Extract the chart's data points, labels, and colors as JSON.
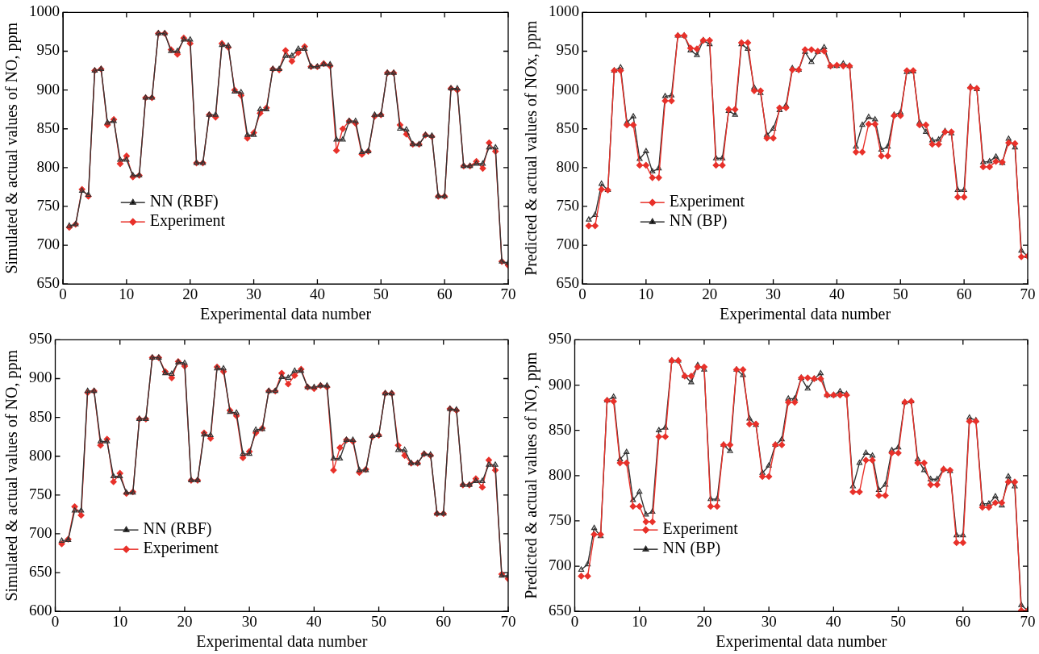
{
  "chart_data": [
    {
      "type": "line",
      "xlabel": "Experimental data number",
      "ylabel": "Simulated & actual values of NO, ppm",
      "x": [
        1,
        2,
        3,
        4,
        5,
        6,
        7,
        8,
        9,
        10,
        11,
        12,
        13,
        14,
        15,
        16,
        17,
        18,
        19,
        20,
        21,
        22,
        23,
        24,
        25,
        26,
        27,
        28,
        29,
        30,
        31,
        32,
        33,
        34,
        35,
        36,
        37,
        38,
        39,
        40,
        41,
        42,
        43,
        44,
        45,
        46,
        47,
        48,
        49,
        50,
        51,
        52,
        53,
        54,
        55,
        56,
        57,
        58,
        59,
        60,
        61,
        62,
        63,
        64,
        65,
        66,
        67,
        68,
        69,
        70
      ],
      "xlim": [
        0,
        70
      ],
      "xticks": [
        0,
        10,
        20,
        30,
        40,
        50,
        60,
        70
      ],
      "ylim": [
        650,
        1000
      ],
      "yticks": [
        650,
        700,
        750,
        800,
        850,
        900,
        950,
        1000
      ],
      "grid": false,
      "legend": "bottom left",
      "line_style": "solid",
      "series": [
        {
          "name": "NN (RBF)",
          "color": "#333333",
          "marker": "triangle",
          "values": [
            725,
            727,
            770,
            765,
            925,
            927,
            858,
            860,
            810,
            810,
            790,
            790,
            890,
            890,
            973,
            973,
            950,
            950,
            965,
            965,
            806,
            806,
            868,
            868,
            958,
            957,
            898,
            897,
            842,
            842,
            875,
            875,
            927,
            927,
            944,
            944,
            953,
            953,
            930,
            930,
            933,
            933,
            836,
            836,
            860,
            860,
            820,
            821,
            868,
            868,
            922,
            922,
            850,
            849,
            830,
            830,
            842,
            841,
            763,
            763,
            902,
            902,
            802,
            802,
            805,
            805,
            826,
            826,
            679,
            677
          ]
        },
        {
          "name": "Experiment",
          "color": "#e8312a",
          "marker": "diamond",
          "values": [
            723,
            727,
            772,
            763,
            925,
            927,
            855,
            862,
            805,
            815,
            788,
            790,
            890,
            890,
            973,
            973,
            952,
            946,
            967,
            960,
            806,
            806,
            868,
            865,
            960,
            955,
            900,
            893,
            838,
            845,
            870,
            877,
            927,
            926,
            951,
            937,
            948,
            956,
            930,
            930,
            934,
            931,
            822,
            850,
            860,
            857,
            817,
            821,
            866,
            868,
            922,
            922,
            855,
            843,
            830,
            830,
            842,
            840,
            763,
            763,
            902,
            900,
            802,
            802,
            808,
            799,
            832,
            821,
            679,
            674
          ]
        }
      ]
    },
    {
      "type": "line",
      "xlabel": "Experimental data number",
      "ylabel": "Predicted & actual values of NOx, ppm",
      "x": [
        1,
        2,
        3,
        4,
        5,
        6,
        7,
        8,
        9,
        10,
        11,
        12,
        13,
        14,
        15,
        16,
        17,
        18,
        19,
        20,
        21,
        22,
        23,
        24,
        25,
        26,
        27,
        28,
        29,
        30,
        31,
        32,
        33,
        34,
        35,
        36,
        37,
        38,
        39,
        40,
        41,
        42,
        43,
        44,
        45,
        46,
        47,
        48,
        49,
        50,
        51,
        52,
        53,
        54,
        55,
        56,
        57,
        58,
        59,
        60,
        61,
        62,
        63,
        64,
        65,
        66,
        67,
        68,
        69,
        70
      ],
      "xlim": [
        0,
        70
      ],
      "xticks": [
        0,
        10,
        20,
        30,
        40,
        50,
        60,
        70
      ],
      "ylim": [
        650,
        1000
      ],
      "yticks": [
        650,
        700,
        750,
        800,
        850,
        900,
        950,
        1000
      ],
      "grid": false,
      "legend": "bottom left",
      "line_style": "solid",
      "series": [
        {
          "name": "Experiment",
          "color": "#e8312a",
          "marker": "diamond",
          "values": [
            725,
            725,
            772,
            771,
            925,
            925,
            855,
            855,
            803,
            803,
            787,
            787,
            886,
            886,
            970,
            970,
            954,
            953,
            964,
            964,
            803,
            803,
            875,
            875,
            961,
            961,
            899,
            899,
            838,
            838,
            877,
            877,
            926,
            926,
            952,
            952,
            950,
            950,
            931,
            932,
            931,
            931,
            820,
            820,
            856,
            856,
            815,
            815,
            867,
            867,
            925,
            925,
            855,
            855,
            830,
            830,
            846,
            846,
            762,
            762,
            903,
            902,
            801,
            801,
            808,
            807,
            832,
            831,
            685,
            686
          ]
        },
        {
          "name": "NN (BP)",
          "color": "#333333",
          "marker": "triangle",
          "values": [
            733,
            739,
            779,
            771,
            925,
            929,
            858,
            866,
            811,
            821,
            795,
            799,
            892,
            893,
            970,
            970,
            951,
            945,
            964,
            959,
            812,
            812,
            873,
            868,
            959,
            953,
            903,
            896,
            842,
            850,
            874,
            880,
            928,
            926,
            949,
            936,
            949,
            955,
            931,
            931,
            934,
            931,
            827,
            855,
            865,
            862,
            823,
            827,
            868,
            871,
            923,
            924,
            858,
            846,
            835,
            836,
            847,
            844,
            771,
            771,
            904,
            901,
            807,
            808,
            814,
            806,
            837,
            826,
            693,
            686
          ]
        }
      ]
    },
    {
      "type": "line",
      "xlabel": "Experimental data number",
      "ylabel": "Simulated & actual values of NO, ppm",
      "x": [
        1,
        2,
        3,
        4,
        5,
        6,
        7,
        8,
        9,
        10,
        11,
        12,
        13,
        14,
        15,
        16,
        17,
        18,
        19,
        20,
        21,
        22,
        23,
        24,
        25,
        26,
        27,
        28,
        29,
        30,
        31,
        32,
        33,
        34,
        35,
        36,
        37,
        38,
        39,
        40,
        41,
        42,
        43,
        44,
        45,
        46,
        47,
        48,
        49,
        50,
        51,
        52,
        53,
        54,
        55,
        56,
        57,
        58,
        59,
        60,
        61,
        62,
        63,
        64,
        65,
        66,
        67,
        68,
        69,
        70
      ],
      "xlim": [
        0,
        70
      ],
      "xticks": [
        0,
        10,
        20,
        30,
        40,
        50,
        60,
        70
      ],
      "ylim": [
        600,
        950
      ],
      "yticks": [
        600,
        650,
        700,
        750,
        800,
        850,
        900,
        950
      ],
      "grid": false,
      "legend": "bottom left",
      "line_style": "solid",
      "series": [
        {
          "name": "NN (RBF)",
          "color": "#333333",
          "marker": "triangle",
          "values": [
            691,
            692,
            730,
            730,
            884,
            884,
            819,
            819,
            774,
            774,
            753,
            753,
            848,
            848,
            927,
            927,
            907,
            906,
            921,
            920,
            769,
            769,
            828,
            827,
            913,
            913,
            857,
            856,
            803,
            803,
            834,
            835,
            884,
            884,
            902,
            901,
            910,
            910,
            889,
            889,
            891,
            891,
            797,
            797,
            821,
            821,
            782,
            782,
            826,
            827,
            881,
            881,
            808,
            808,
            791,
            791,
            803,
            802,
            726,
            726,
            861,
            860,
            763,
            763,
            768,
            768,
            789,
            789,
            646,
            646
          ]
        },
        {
          "name": "Experiment",
          "color": "#e8312a",
          "marker": "diamond",
          "values": [
            687,
            693,
            735,
            724,
            882,
            884,
            814,
            822,
            767,
            778,
            752,
            754,
            848,
            848,
            927,
            927,
            909,
            901,
            922,
            916,
            769,
            769,
            830,
            823,
            915,
            909,
            859,
            852,
            798,
            806,
            830,
            836,
            884,
            884,
            907,
            893,
            904,
            912,
            889,
            887,
            891,
            889,
            782,
            811,
            821,
            819,
            779,
            783,
            825,
            827,
            881,
            881,
            814,
            801,
            791,
            791,
            803,
            801,
            726,
            726,
            861,
            859,
            763,
            763,
            771,
            760,
            795,
            782,
            648,
            642
          ]
        }
      ]
    },
    {
      "type": "line",
      "xlabel": "Experimental data number",
      "ylabel": "Predicted & actual values of NO, ppm",
      "x": [
        1,
        2,
        3,
        4,
        5,
        6,
        7,
        8,
        9,
        10,
        11,
        12,
        13,
        14,
        15,
        16,
        17,
        18,
        19,
        20,
        21,
        22,
        23,
        24,
        25,
        26,
        27,
        28,
        29,
        30,
        31,
        32,
        33,
        34,
        35,
        36,
        37,
        38,
        39,
        40,
        41,
        42,
        43,
        44,
        45,
        46,
        47,
        48,
        49,
        50,
        51,
        52,
        53,
        54,
        55,
        56,
        57,
        58,
        59,
        60,
        61,
        62,
        63,
        64,
        65,
        66,
        67,
        68,
        69,
        70
      ],
      "xlim": [
        0,
        70
      ],
      "xticks": [
        0,
        10,
        20,
        30,
        40,
        50,
        60,
        70
      ],
      "ylim": [
        650,
        950
      ],
      "yticks": [
        650,
        700,
        750,
        800,
        850,
        900,
        950
      ],
      "grid": false,
      "legend": "bottom left",
      "line_style": "solid",
      "series": [
        {
          "name": "Experiment",
          "color": "#e8312a",
          "marker": "diamond",
          "values": [
            689,
            689,
            735,
            735,
            883,
            882,
            814,
            814,
            766,
            766,
            749,
            749,
            843,
            843,
            927,
            927,
            910,
            910,
            920,
            920,
            766,
            766,
            834,
            834,
            917,
            917,
            857,
            857,
            799,
            799,
            834,
            834,
            881,
            881,
            908,
            908,
            907,
            907,
            889,
            889,
            889,
            889,
            782,
            782,
            817,
            817,
            778,
            778,
            825,
            825,
            881,
            882,
            814,
            814,
            790,
            790,
            807,
            806,
            726,
            726,
            860,
            860,
            765,
            765,
            770,
            770,
            793,
            793,
            651,
            651
          ]
        },
        {
          "name": "NN (BP)",
          "color": "#333333",
          "marker": "triangle",
          "values": [
            696,
            702,
            742,
            733,
            883,
            887,
            818,
            826,
            773,
            782,
            757,
            760,
            850,
            853,
            927,
            927,
            910,
            903,
            922,
            917,
            774,
            774,
            834,
            827,
            917,
            911,
            863,
            856,
            803,
            811,
            834,
            840,
            885,
            885,
            908,
            896,
            907,
            913,
            889,
            889,
            893,
            890,
            788,
            814,
            825,
            822,
            784,
            790,
            828,
            831,
            881,
            882,
            818,
            806,
            796,
            796,
            807,
            805,
            734,
            734,
            864,
            861,
            769,
            769,
            777,
            767,
            799,
            788,
            657,
            651
          ]
        }
      ]
    }
  ]
}
